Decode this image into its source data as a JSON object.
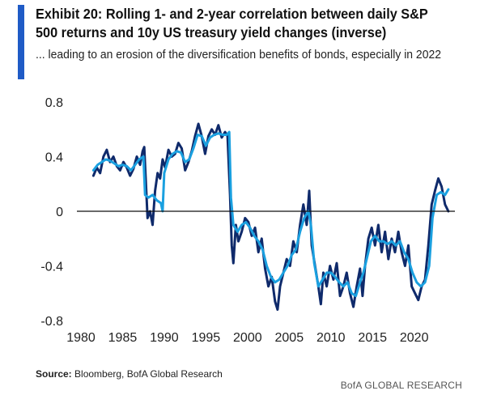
{
  "header": {
    "title": "Exhibit 20: Rolling 1- and 2-year correlation between daily S&P 500 returns and 10y US treasury yield changes (inverse)",
    "subtitle": "... leading to an erosion of the diversification benefits of bonds, especially in 2022"
  },
  "footer": {
    "source_label": "Source:",
    "source_text": " Bloomberg, BofA Global Research",
    "brand": "BofA GLOBAL RESEARCH"
  },
  "colors": {
    "accent": "#1f5bc6",
    "series_dark": "#0f2a6b",
    "series_light": "#1aa0e0",
    "zero_line": "#111111"
  },
  "chart_data": {
    "type": "line",
    "title": "",
    "xlabel": "",
    "ylabel": "",
    "xlim": [
      1980,
      2024.5
    ],
    "ylim": [
      -0.8,
      0.8
    ],
    "xticks": [
      1980,
      1985,
      1990,
      1995,
      2000,
      2005,
      2010,
      2015,
      2020
    ],
    "yticks": [
      -0.8,
      -0.4,
      0,
      0.4,
      0.8
    ],
    "ytick_labels": [
      "-0.8",
      "-0.4",
      "0",
      "0.4",
      "0.8"
    ],
    "grid": false,
    "legend": "none",
    "series": [
      {
        "key": "one_year",
        "color": "#0f2a6b",
        "points": [
          [
            1981.5,
            0.26
          ],
          [
            1981.9,
            0.32
          ],
          [
            1982.3,
            0.28
          ],
          [
            1982.7,
            0.4
          ],
          [
            1983.1,
            0.45
          ],
          [
            1983.5,
            0.36
          ],
          [
            1983.9,
            0.4
          ],
          [
            1984.3,
            0.33
          ],
          [
            1984.7,
            0.3
          ],
          [
            1985.1,
            0.36
          ],
          [
            1985.5,
            0.32
          ],
          [
            1985.9,
            0.26
          ],
          [
            1986.3,
            0.31
          ],
          [
            1986.7,
            0.4
          ],
          [
            1987.1,
            0.34
          ],
          [
            1987.4,
            0.44
          ],
          [
            1987.6,
            0.47
          ],
          [
            1987.8,
            0.2
          ],
          [
            1988.0,
            -0.05
          ],
          [
            1988.3,
            0.0
          ],
          [
            1988.6,
            -0.1
          ],
          [
            1988.9,
            0.15
          ],
          [
            1989.2,
            0.28
          ],
          [
            1989.5,
            0.24
          ],
          [
            1989.8,
            0.38
          ],
          [
            1990.1,
            0.32
          ],
          [
            1990.5,
            0.45
          ],
          [
            1990.9,
            0.4
          ],
          [
            1991.3,
            0.42
          ],
          [
            1991.7,
            0.5
          ],
          [
            1992.1,
            0.46
          ],
          [
            1992.5,
            0.3
          ],
          [
            1992.9,
            0.36
          ],
          [
            1993.3,
            0.44
          ],
          [
            1993.7,
            0.55
          ],
          [
            1994.1,
            0.64
          ],
          [
            1994.5,
            0.55
          ],
          [
            1994.9,
            0.42
          ],
          [
            1995.3,
            0.55
          ],
          [
            1995.7,
            0.6
          ],
          [
            1996.1,
            0.56
          ],
          [
            1996.5,
            0.63
          ],
          [
            1996.9,
            0.54
          ],
          [
            1997.3,
            0.58
          ],
          [
            1997.6,
            0.55
          ],
          [
            1997.9,
            0.12
          ],
          [
            1998.1,
            -0.25
          ],
          [
            1998.3,
            -0.38
          ],
          [
            1998.6,
            -0.1
          ],
          [
            1998.9,
            -0.22
          ],
          [
            1999.3,
            -0.15
          ],
          [
            1999.7,
            -0.05
          ],
          [
            2000.1,
            -0.08
          ],
          [
            2000.5,
            -0.18
          ],
          [
            2000.9,
            -0.12
          ],
          [
            2001.3,
            -0.3
          ],
          [
            2001.7,
            -0.2
          ],
          [
            2002.1,
            -0.42
          ],
          [
            2002.5,
            -0.55
          ],
          [
            2002.9,
            -0.48
          ],
          [
            2003.3,
            -0.66
          ],
          [
            2003.6,
            -0.72
          ],
          [
            2003.9,
            -0.55
          ],
          [
            2004.3,
            -0.45
          ],
          [
            2004.7,
            -0.35
          ],
          [
            2005.1,
            -0.4
          ],
          [
            2005.5,
            -0.22
          ],
          [
            2005.9,
            -0.3
          ],
          [
            2006.3,
            -0.1
          ],
          [
            2006.7,
            0.05
          ],
          [
            2007.1,
            -0.1
          ],
          [
            2007.4,
            0.15
          ],
          [
            2007.7,
            -0.25
          ],
          [
            2008.1,
            -0.4
          ],
          [
            2008.5,
            -0.55
          ],
          [
            2008.8,
            -0.68
          ],
          [
            2009.1,
            -0.45
          ],
          [
            2009.5,
            -0.55
          ],
          [
            2009.9,
            -0.4
          ],
          [
            2010.3,
            -0.5
          ],
          [
            2010.7,
            -0.38
          ],
          [
            2011.1,
            -0.62
          ],
          [
            2011.5,
            -0.55
          ],
          [
            2011.9,
            -0.45
          ],
          [
            2012.3,
            -0.6
          ],
          [
            2012.7,
            -0.7
          ],
          [
            2013.1,
            -0.55
          ],
          [
            2013.5,
            -0.42
          ],
          [
            2013.8,
            -0.62
          ],
          [
            2014.1,
            -0.4
          ],
          [
            2014.5,
            -0.2
          ],
          [
            2014.9,
            -0.12
          ],
          [
            2015.3,
            -0.25
          ],
          [
            2015.7,
            -0.1
          ],
          [
            2016.1,
            -0.3
          ],
          [
            2016.5,
            -0.15
          ],
          [
            2016.9,
            -0.35
          ],
          [
            2017.3,
            -0.2
          ],
          [
            2017.7,
            -0.3
          ],
          [
            2018.1,
            -0.15
          ],
          [
            2018.5,
            -0.3
          ],
          [
            2018.9,
            -0.4
          ],
          [
            2019.3,
            -0.25
          ],
          [
            2019.7,
            -0.55
          ],
          [
            2020.1,
            -0.6
          ],
          [
            2020.5,
            -0.65
          ],
          [
            2020.9,
            -0.55
          ],
          [
            2021.3,
            -0.5
          ],
          [
            2021.7,
            -0.25
          ],
          [
            2022.1,
            0.05
          ],
          [
            2022.5,
            0.15
          ],
          [
            2022.9,
            0.24
          ],
          [
            2023.3,
            0.18
          ],
          [
            2023.7,
            0.05
          ],
          [
            2024.1,
            0.0
          ]
        ]
      },
      {
        "key": "two_year",
        "color": "#1aa0e0",
        "points": [
          [
            1981.5,
            0.3
          ],
          [
            1982.0,
            0.34
          ],
          [
            1982.5,
            0.36
          ],
          [
            1983.0,
            0.38
          ],
          [
            1983.5,
            0.37
          ],
          [
            1984.0,
            0.35
          ],
          [
            1984.5,
            0.33
          ],
          [
            1985.0,
            0.34
          ],
          [
            1985.5,
            0.33
          ],
          [
            1986.0,
            0.3
          ],
          [
            1986.5,
            0.34
          ],
          [
            1987.0,
            0.38
          ],
          [
            1987.5,
            0.4
          ],
          [
            1987.7,
            0.12
          ],
          [
            1988.1,
            0.1
          ],
          [
            1988.6,
            0.12
          ],
          [
            1989.1,
            0.08
          ],
          [
            1989.6,
            0.06
          ],
          [
            1989.8,
            0.0
          ],
          [
            1990.0,
            0.28
          ],
          [
            1990.5,
            0.38
          ],
          [
            1991.0,
            0.42
          ],
          [
            1991.5,
            0.44
          ],
          [
            1992.0,
            0.43
          ],
          [
            1992.5,
            0.36
          ],
          [
            1993.0,
            0.38
          ],
          [
            1993.5,
            0.46
          ],
          [
            1994.0,
            0.56
          ],
          [
            1994.5,
            0.55
          ],
          [
            1995.0,
            0.48
          ],
          [
            1995.5,
            0.54
          ],
          [
            1996.0,
            0.56
          ],
          [
            1996.5,
            0.57
          ],
          [
            1997.0,
            0.56
          ],
          [
            1997.5,
            0.56
          ],
          [
            1997.8,
            0.58
          ],
          [
            1998.0,
            0.1
          ],
          [
            1998.3,
            -0.1
          ],
          [
            1998.8,
            -0.15
          ],
          [
            1999.3,
            -0.1
          ],
          [
            1999.8,
            -0.08
          ],
          [
            2000.3,
            -0.12
          ],
          [
            2000.8,
            -0.18
          ],
          [
            2001.3,
            -0.22
          ],
          [
            2001.8,
            -0.28
          ],
          [
            2002.3,
            -0.4
          ],
          [
            2002.8,
            -0.48
          ],
          [
            2003.3,
            -0.52
          ],
          [
            2003.8,
            -0.5
          ],
          [
            2004.3,
            -0.45
          ],
          [
            2004.8,
            -0.4
          ],
          [
            2005.3,
            -0.32
          ],
          [
            2005.8,
            -0.28
          ],
          [
            2006.3,
            -0.15
          ],
          [
            2006.8,
            -0.05
          ],
          [
            2007.3,
            0.0
          ],
          [
            2007.6,
            -0.1
          ],
          [
            2008.0,
            -0.38
          ],
          [
            2008.5,
            -0.55
          ],
          [
            2009.0,
            -0.5
          ],
          [
            2009.5,
            -0.45
          ],
          [
            2010.0,
            -0.45
          ],
          [
            2010.5,
            -0.48
          ],
          [
            2011.0,
            -0.52
          ],
          [
            2011.5,
            -0.55
          ],
          [
            2012.0,
            -0.52
          ],
          [
            2012.5,
            -0.6
          ],
          [
            2013.0,
            -0.62
          ],
          [
            2013.5,
            -0.52
          ],
          [
            2013.9,
            -0.45
          ],
          [
            2014.3,
            -0.35
          ],
          [
            2014.8,
            -0.22
          ],
          [
            2015.3,
            -0.18
          ],
          [
            2015.8,
            -0.22
          ],
          [
            2016.3,
            -0.22
          ],
          [
            2016.8,
            -0.24
          ],
          [
            2017.3,
            -0.22
          ],
          [
            2017.8,
            -0.25
          ],
          [
            2018.3,
            -0.22
          ],
          [
            2018.8,
            -0.3
          ],
          [
            2019.3,
            -0.35
          ],
          [
            2019.8,
            -0.45
          ],
          [
            2020.3,
            -0.52
          ],
          [
            2020.8,
            -0.55
          ],
          [
            2021.3,
            -0.52
          ],
          [
            2021.8,
            -0.4
          ],
          [
            2022.2,
            -0.05
          ],
          [
            2022.7,
            0.12
          ],
          [
            2023.2,
            0.14
          ],
          [
            2023.7,
            0.12
          ],
          [
            2024.1,
            0.16
          ]
        ]
      }
    ]
  }
}
